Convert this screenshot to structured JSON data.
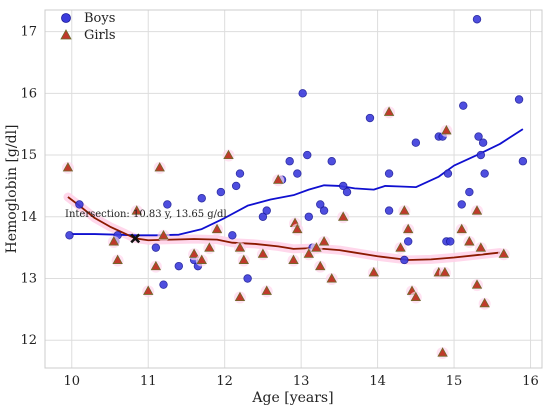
{
  "chart_data": {
    "type": "scatter",
    "xlabel": "Age [years]",
    "ylabel": "Hemoglobin [g/dl]",
    "xlim": [
      9.65,
      16.15
    ],
    "ylim": [
      11.55,
      17.35
    ],
    "xticks": [
      10,
      11,
      12,
      13,
      14,
      15,
      16
    ],
    "yticks": [
      12,
      13,
      14,
      15,
      16,
      17
    ],
    "grid": true,
    "legend_position": "top-left",
    "colors": {
      "boys_marker": "#3b3bdc",
      "boys_trend": "#1010d0",
      "girls_marker": "#c0392b",
      "girls_edge": "#6b6b2a",
      "girls_trend": "#8b1a00",
      "girls_band": "#ffd0e8",
      "grid": "#dddddd"
    },
    "series": [
      {
        "name": "Boys",
        "marker": "circle",
        "points": [
          [
            9.97,
            13.7
          ],
          [
            10.1,
            14.2
          ],
          [
            10.57,
            13.6
          ],
          [
            10.6,
            13.7
          ],
          [
            11.1,
            13.5
          ],
          [
            11.2,
            12.9
          ],
          [
            11.25,
            14.2
          ],
          [
            11.4,
            13.2
          ],
          [
            11.6,
            13.3
          ],
          [
            11.65,
            13.2
          ],
          [
            11.7,
            14.3
          ],
          [
            11.95,
            14.4
          ],
          [
            12.1,
            13.7
          ],
          [
            12.15,
            14.5
          ],
          [
            12.2,
            14.7
          ],
          [
            12.3,
            13.0
          ],
          [
            12.5,
            14.0
          ],
          [
            12.55,
            14.1
          ],
          [
            12.75,
            14.6
          ],
          [
            12.85,
            14.9
          ],
          [
            12.95,
            14.7
          ],
          [
            13.02,
            16.0
          ],
          [
            13.08,
            15.0
          ],
          [
            13.1,
            14.0
          ],
          [
            13.15,
            13.5
          ],
          [
            13.25,
            14.2
          ],
          [
            13.3,
            14.1
          ],
          [
            13.4,
            14.9
          ],
          [
            13.55,
            14.5
          ],
          [
            13.6,
            14.4
          ],
          [
            13.9,
            15.6
          ],
          [
            14.15,
            14.1
          ],
          [
            14.15,
            14.7
          ],
          [
            14.35,
            13.3
          ],
          [
            14.4,
            13.6
          ],
          [
            14.5,
            15.2
          ],
          [
            14.8,
            15.3
          ],
          [
            14.85,
            15.3
          ],
          [
            14.9,
            13.6
          ],
          [
            14.92,
            14.7
          ],
          [
            14.95,
            13.6
          ],
          [
            15.1,
            14.2
          ],
          [
            15.12,
            15.8
          ],
          [
            15.2,
            14.4
          ],
          [
            15.3,
            17.2
          ],
          [
            15.32,
            15.3
          ],
          [
            15.35,
            15.0
          ],
          [
            15.38,
            15.2
          ],
          [
            15.4,
            14.7
          ],
          [
            15.85,
            15.9
          ],
          [
            15.9,
            14.9
          ]
        ]
      },
      {
        "name": "Girls",
        "marker": "triangle",
        "points": [
          [
            9.95,
            14.8
          ],
          [
            10.55,
            13.6
          ],
          [
            10.6,
            13.3
          ],
          [
            10.85,
            14.1
          ],
          [
            11.0,
            12.8
          ],
          [
            11.1,
            13.2
          ],
          [
            11.15,
            14.8
          ],
          [
            11.2,
            13.7
          ],
          [
            11.6,
            13.4
          ],
          [
            11.7,
            13.3
          ],
          [
            11.8,
            13.5
          ],
          [
            11.9,
            13.8
          ],
          [
            12.05,
            15.0
          ],
          [
            12.2,
            12.7
          ],
          [
            12.2,
            13.5
          ],
          [
            12.25,
            13.3
          ],
          [
            12.5,
            13.4
          ],
          [
            12.55,
            12.8
          ],
          [
            12.7,
            14.6
          ],
          [
            12.9,
            13.3
          ],
          [
            12.92,
            13.9
          ],
          [
            12.95,
            13.8
          ],
          [
            13.1,
            13.4
          ],
          [
            13.2,
            13.5
          ],
          [
            13.25,
            13.2
          ],
          [
            13.3,
            13.6
          ],
          [
            13.4,
            13.0
          ],
          [
            13.55,
            14.0
          ],
          [
            13.95,
            13.1
          ],
          [
            14.15,
            15.7
          ],
          [
            14.3,
            13.5
          ],
          [
            14.35,
            14.1
          ],
          [
            14.4,
            13.8
          ],
          [
            14.45,
            12.8
          ],
          [
            14.5,
            12.7
          ],
          [
            14.8,
            13.1
          ],
          [
            14.85,
            11.8
          ],
          [
            14.88,
            13.1
          ],
          [
            14.9,
            15.4
          ],
          [
            15.1,
            13.8
          ],
          [
            15.2,
            13.6
          ],
          [
            15.3,
            14.1
          ],
          [
            15.3,
            12.9
          ],
          [
            15.35,
            13.5
          ],
          [
            15.4,
            12.6
          ],
          [
            15.65,
            13.4
          ]
        ]
      }
    ],
    "trend_lines": [
      {
        "name": "Boys trend",
        "points": [
          [
            10.0,
            13.72
          ],
          [
            10.3,
            13.72
          ],
          [
            10.6,
            13.71
          ],
          [
            10.83,
            13.7
          ],
          [
            11.1,
            13.7
          ],
          [
            11.4,
            13.71
          ],
          [
            11.7,
            13.8
          ],
          [
            12.0,
            13.98
          ],
          [
            12.3,
            14.18
          ],
          [
            12.6,
            14.28
          ],
          [
            12.9,
            14.35
          ],
          [
            13.1,
            14.44
          ],
          [
            13.3,
            14.51
          ],
          [
            13.5,
            14.5
          ],
          [
            13.7,
            14.46
          ],
          [
            13.95,
            14.44
          ],
          [
            14.1,
            14.5
          ],
          [
            14.3,
            14.49
          ],
          [
            14.5,
            14.48
          ],
          [
            14.8,
            14.65
          ],
          [
            15.0,
            14.83
          ],
          [
            15.3,
            15.0
          ],
          [
            15.6,
            15.18
          ],
          [
            15.9,
            15.42
          ]
        ]
      },
      {
        "name": "Girls trend",
        "points": [
          [
            9.95,
            14.32
          ],
          [
            10.1,
            14.18
          ],
          [
            10.3,
            13.98
          ],
          [
            10.5,
            13.84
          ],
          [
            10.83,
            13.65
          ],
          [
            11.0,
            13.62
          ],
          [
            11.3,
            13.63
          ],
          [
            11.6,
            13.64
          ],
          [
            11.9,
            13.63
          ],
          [
            12.1,
            13.58
          ],
          [
            12.4,
            13.56
          ],
          [
            12.7,
            13.52
          ],
          [
            12.9,
            13.48
          ],
          [
            13.1,
            13.49
          ],
          [
            13.3,
            13.48
          ],
          [
            13.5,
            13.46
          ],
          [
            13.7,
            13.42
          ],
          [
            14.0,
            13.36
          ],
          [
            14.2,
            13.33
          ],
          [
            14.4,
            13.3
          ],
          [
            14.7,
            13.31
          ],
          [
            15.0,
            13.34
          ],
          [
            15.3,
            13.38
          ],
          [
            15.6,
            13.42
          ]
        ]
      }
    ],
    "intersection": {
      "x": 10.83,
      "y": 13.65,
      "label": "Intersection: 10.83 y, 13.65 g/dl"
    }
  }
}
